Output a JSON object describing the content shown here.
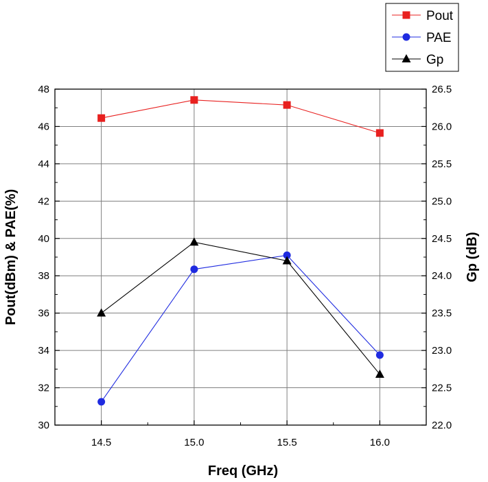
{
  "chart_data": {
    "type": "line",
    "title": "",
    "xlabel": "Freq (GHz)",
    "ylabel": "Pout(dBm) & PAE(%)",
    "y2label": "Gp (dB)",
    "x": [
      14.5,
      15.0,
      15.5,
      16.0
    ],
    "x_tick_labels": [
      "14.5",
      "15.0",
      "15.5",
      "16.0"
    ],
    "xlim": [
      14.25,
      16.25
    ],
    "ylim": [
      30,
      48
    ],
    "y_ticks": [
      "30",
      "32",
      "34",
      "36",
      "38",
      "40",
      "42",
      "44",
      "46",
      "48"
    ],
    "y2lim": [
      22.0,
      26.5
    ],
    "y2_ticks": [
      "22.0",
      "22.5",
      "23.0",
      "23.5",
      "24.0",
      "24.5",
      "25.0",
      "25.5",
      "26.0",
      "26.5"
    ],
    "grid": true,
    "legend_position": "top-right, outside plot",
    "series": [
      {
        "name": "Pout",
        "axis": "left",
        "color": "#e8201f",
        "marker": "square",
        "values": [
          46.45,
          47.42,
          47.15,
          45.65
        ]
      },
      {
        "name": "PAE",
        "axis": "left",
        "color": "#1f2be0",
        "marker": "circle",
        "values": [
          31.25,
          38.35,
          39.1,
          33.75
        ]
      },
      {
        "name": "Gp",
        "axis": "right",
        "color": "#000000",
        "marker": "triangle",
        "values": [
          23.5,
          24.45,
          24.2,
          22.68
        ]
      }
    ]
  }
}
